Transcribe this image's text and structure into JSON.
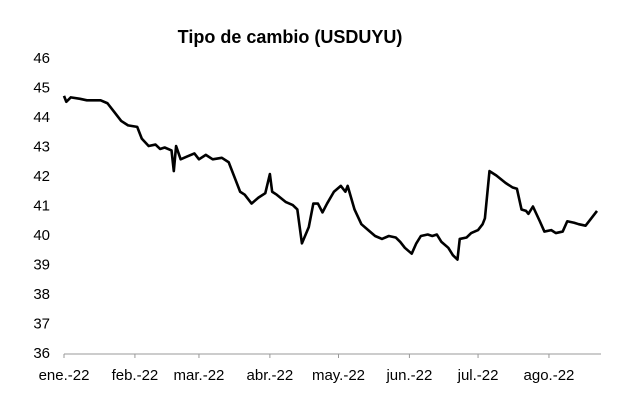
{
  "chart_data": {
    "type": "line",
    "title": "Tipo de cambio (USDUYU)",
    "x": [
      0,
      1,
      3,
      7,
      10,
      14,
      16,
      19,
      22,
      25,
      28,
      32,
      34,
      37,
      40,
      42,
      44,
      47,
      48,
      49,
      51,
      54,
      57,
      59,
      62,
      65,
      69,
      72,
      75,
      77,
      79,
      82,
      85,
      88,
      90,
      91,
      93,
      97,
      100,
      102,
      104,
      107,
      109,
      111,
      113,
      115,
      118,
      121,
      123,
      124,
      127,
      130,
      133,
      136,
      139,
      142,
      145,
      147,
      149,
      152,
      154,
      156,
      159,
      161,
      163,
      165,
      168,
      170,
      172,
      173,
      176,
      178,
      181,
      183,
      184,
      186,
      189,
      193,
      196,
      198,
      200,
      202,
      203,
      205,
      208,
      210,
      213,
      215,
      218,
      220,
      223,
      225,
      228,
      230,
      233
    ],
    "values": [
      44.75,
      44.55,
      44.7,
      44.65,
      44.6,
      44.6,
      44.6,
      44.5,
      44.2,
      43.9,
      43.75,
      43.7,
      43.3,
      43.05,
      43.1,
      42.95,
      43.0,
      42.9,
      42.2,
      43.05,
      42.6,
      42.7,
      42.8,
      42.6,
      42.75,
      42.6,
      42.65,
      42.5,
      41.9,
      41.5,
      41.4,
      41.1,
      41.3,
      41.45,
      42.1,
      41.5,
      41.4,
      41.15,
      41.05,
      40.9,
      39.75,
      40.3,
      41.1,
      41.1,
      40.8,
      41.1,
      41.5,
      41.7,
      41.5,
      41.7,
      40.9,
      40.4,
      40.2,
      40.0,
      39.9,
      40.0,
      39.95,
      39.8,
      39.6,
      39.4,
      39.75,
      40.0,
      40.05,
      40.0,
      40.05,
      39.8,
      39.6,
      39.35,
      39.2,
      39.9,
      39.95,
      40.1,
      40.2,
      40.4,
      40.6,
      42.2,
      42.05,
      41.8,
      41.65,
      41.6,
      40.9,
      40.85,
      40.75,
      41.0,
      40.5,
      40.15,
      40.2,
      40.1,
      40.15,
      40.5,
      40.45,
      40.4,
      40.35,
      40.55,
      40.85
    ],
    "color": "#000000",
    "xlim": [
      0,
      233
    ],
    "xticks": [
      {
        "value": 0,
        "label": "ene.-22"
      },
      {
        "value": 31,
        "label": "feb.-22"
      },
      {
        "value": 59,
        "label": "mar.-22"
      },
      {
        "value": 90,
        "label": "abr.-22"
      },
      {
        "value": 120,
        "label": "may.-22"
      },
      {
        "value": 151,
        "label": "jun.-22"
      },
      {
        "value": 181,
        "label": "jul.-22"
      },
      {
        "value": 212,
        "label": "ago.-22"
      }
    ],
    "ylim": [
      36,
      46
    ],
    "yticks": [
      36,
      37,
      38,
      39,
      40,
      41,
      42,
      43,
      44,
      45,
      46
    ],
    "grid": false
  }
}
